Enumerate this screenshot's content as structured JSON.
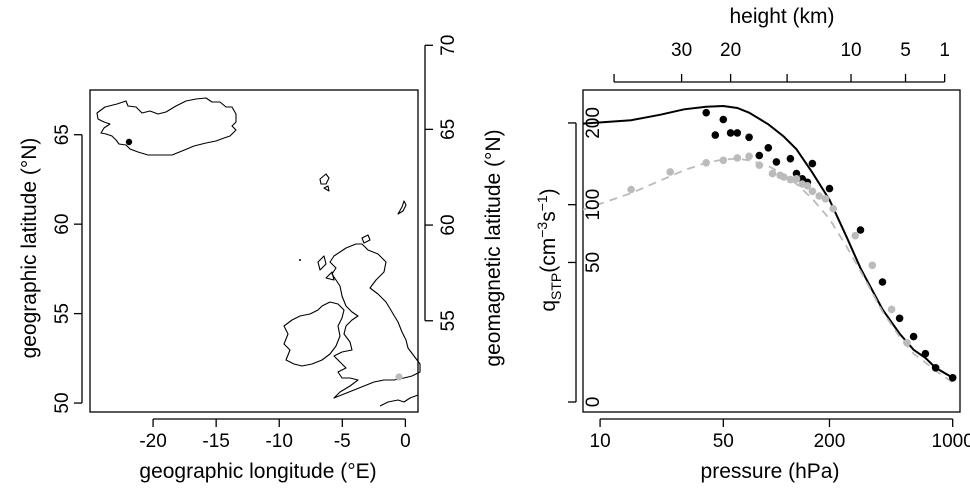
{
  "chart_data": [
    {
      "type": "map",
      "xlabel": "geographic longitude (°E)",
      "ylabel_left": "geographic latitude (°N)",
      "ylabel_right": "geomagnetic latitude (°N)",
      "xlim": [
        -25,
        1
      ],
      "ylim": [
        49.5,
        67.5
      ],
      "x_ticks": [
        -20,
        -15,
        -10,
        -5,
        0
      ],
      "x_tick_labels": [
        "-20",
        "-15",
        "-10",
        "-5",
        "0"
      ],
      "y_ticks": [
        50,
        55,
        60,
        65
      ],
      "y_tick_labels": [
        "50",
        "55",
        "60",
        "65"
      ],
      "y2_ticks": [
        54.6,
        59.95,
        65.3,
        70.0
      ],
      "y2_tick_labels": [
        "55",
        "60",
        "65",
        "70"
      ],
      "sites": [
        {
          "lon": -21.9,
          "lat": 64.1,
          "color": "#000000"
        },
        {
          "lon": -1.2,
          "lat": 51.4,
          "color": "#bbbbbb"
        }
      ],
      "coastlines": [
        "Iceland",
        "Great Britain",
        "Ireland",
        "Faroe Islands",
        "Shetland",
        "Orkney",
        "continental Europe"
      ]
    },
    {
      "type": "scatter",
      "x_scale": "log",
      "xlabel": "pressure (hPa)",
      "ylabel": "q",
      "ylabel_sub": "STP",
      "ylabel_units": "(cm",
      "ylabel_exp1": "−3",
      "ylabel_mid": "s",
      "ylabel_exp2": "−1",
      "ylabel_close": ")",
      "top_xlabel": "height (km)",
      "xlim": [
        8,
        1100
      ],
      "ylim": [
        0,
        250
      ],
      "y_scale_note": "square-root",
      "x_ticks": [
        10,
        50,
        200,
        1000
      ],
      "x_tick_labels": [
        "10",
        "50",
        "200",
        "1000"
      ],
      "y_ticks": [
        0,
        50,
        100,
        200
      ],
      "y_tick_labels": [
        "0",
        "50",
        "100",
        "200"
      ],
      "top_ticks_pressure": [
        12,
        29,
        55,
        115,
        265,
        540,
        900
      ],
      "top_tick_labels": [
        "",
        "30",
        "20",
        "",
        "10",
        "5",
        "1"
      ],
      "series": [
        {
          "line_style": "solid",
          "color": "#000000",
          "x": [
            8,
            15,
            22,
            30,
            40,
            50,
            60,
            70,
            90,
            110,
            130,
            160,
            200,
            250,
            300,
            400,
            500,
            600,
            700,
            800,
            1000
          ],
          "y": [
            199,
            204,
            212,
            220,
            224,
            225,
            222,
            215,
            198,
            181,
            164,
            135,
            105,
            70,
            46,
            22,
            12,
            7,
            5,
            3,
            1.5
          ]
        },
        {
          "line_style": "dashed",
          "color": "#bbbbbb",
          "x": [
            8,
            15,
            22,
            30,
            40,
            50,
            60,
            70,
            90,
            110,
            130,
            160,
            200,
            250,
            300,
            400,
            500,
            600,
            700,
            800,
            1000
          ],
          "y": [
            95,
            112,
            126,
            138,
            147,
            151,
            152,
            150,
            143,
            133,
            122,
            106,
            86,
            62,
            44,
            21,
            11,
            6,
            4,
            2.5,
            1
          ]
        },
        {
          "marker": "dot",
          "color": "#000000",
          "x": [
            40,
            45,
            50,
            55,
            60,
            70,
            80,
            90,
            100,
            120,
            130,
            140,
            150,
            160,
            200,
            300,
            400,
            500,
            600,
            700,
            800,
            1000
          ],
          "y": [
            215,
            183,
            205,
            186,
            186,
            180,
            156,
            166,
            148,
            152,
            134,
            128,
            124,
            146,
            117,
            76,
            37,
            18,
            11,
            6,
            3,
            1.5
          ]
        },
        {
          "marker": "dot",
          "color": "#bbbbbb",
          "x": [
            15,
            25,
            40,
            50,
            60,
            70,
            80,
            95,
            105,
            110,
            120,
            130,
            140,
            150,
            160,
            175,
            190,
            210,
            280,
            350,
            450,
            550
          ],
          "y": [
            116,
            136,
            147,
            150,
            153,
            155,
            144,
            134,
            132,
            130,
            127,
            128,
            122,
            120,
            114,
            109,
            106,
            96,
            71,
            48,
            22,
            9
          ]
        }
      ]
    }
  ]
}
